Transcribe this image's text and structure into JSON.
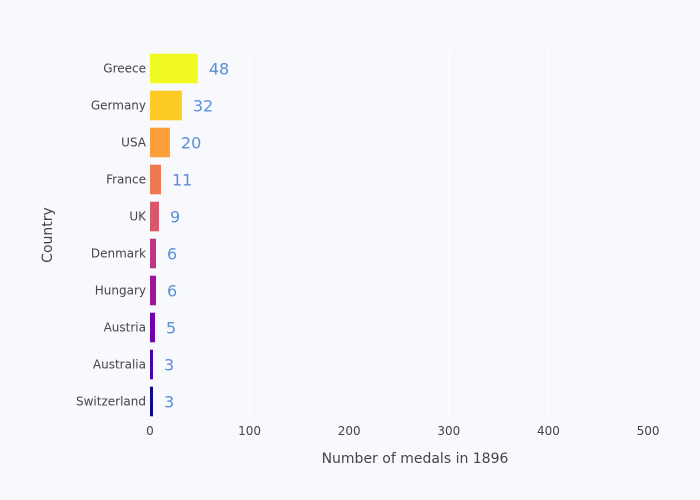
{
  "chart_data": {
    "type": "bar",
    "orientation": "horizontal",
    "categories": [
      "Greece",
      "Germany",
      "USA",
      "France",
      "UK",
      "Denmark",
      "Hungary",
      "Austria",
      "Australia",
      "Switzerland"
    ],
    "values": [
      48,
      32,
      20,
      11,
      9,
      6,
      6,
      5,
      3,
      3
    ],
    "data_labels": [
      "48",
      "32",
      "20",
      "11",
      "9",
      "6",
      "6",
      "5",
      "3",
      "3"
    ],
    "xlabel": "Number of medals in 1896",
    "ylabel": "Country",
    "xlim": [
      0,
      520
    ],
    "x_ticks": [
      0,
      100,
      200,
      300,
      400,
      500
    ],
    "x_tick_labels": [
      "0",
      "100",
      "200",
      "300",
      "400",
      "500"
    ],
    "grid": true,
    "legend": "none",
    "colors": {
      "background": "#f7f9fd",
      "gridline": "#ffffff",
      "tick_text": "#444444",
      "data_label": "#5b8fd6",
      "bars": [
        "#f0f921",
        "#fdca26",
        "#fb9f3a",
        "#ed7953",
        "#d8576b",
        "#bd3786",
        "#9c179e",
        "#7201a8",
        "#46039f",
        "#0d0887"
      ]
    }
  }
}
